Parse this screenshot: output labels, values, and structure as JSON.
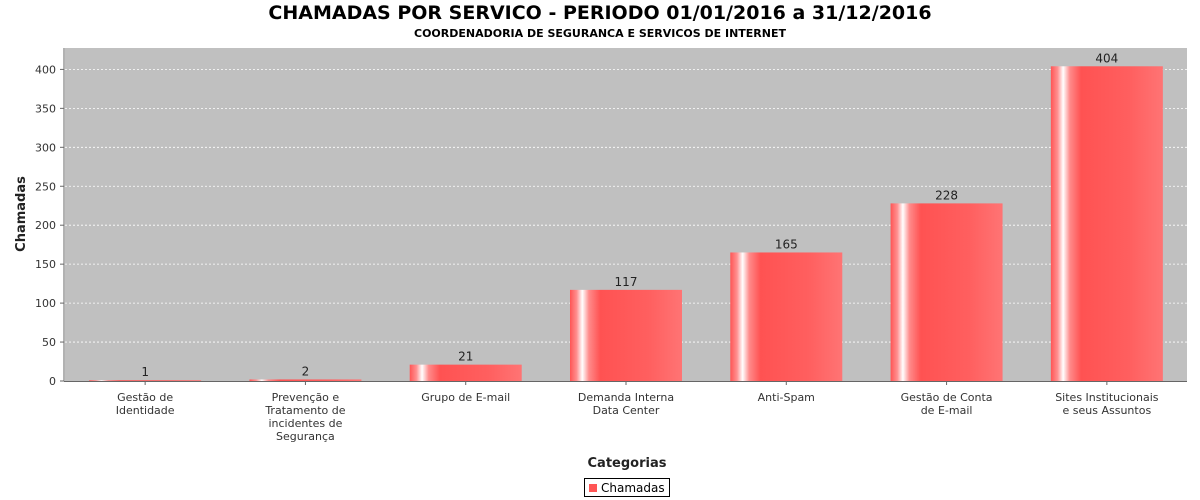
{
  "chart_data": {
    "type": "bar",
    "title": "CHAMADAS POR SERVICO - PERIODO 01/01/2016 a 31/12/2016",
    "subtitle": "COORDENADORIA DE SEGURANCA E SERVICOS DE INTERNET",
    "xlabel": "Categorias",
    "ylabel": "Chamadas",
    "ylim": [
      0,
      440
    ],
    "yticks": [
      0,
      50,
      100,
      150,
      200,
      250,
      300,
      350,
      400
    ],
    "grid": true,
    "legend_position": "bottom",
    "categories": [
      [
        "Gestão de",
        "Identidade"
      ],
      [
        "Prevenção e",
        "Tratamento de",
        "incidentes de",
        "Segurança"
      ],
      [
        "Grupo de E-mail"
      ],
      [
        "Demanda Interna",
        "Data Center"
      ],
      [
        "Anti-Spam"
      ],
      [
        "Gestão de Conta",
        "de E-mail"
      ],
      [
        "Sites Institucionais",
        "e seus Assuntos"
      ]
    ],
    "series": [
      {
        "name": "Chamadas",
        "values": [
          1,
          2,
          21,
          117,
          165,
          228,
          404
        ],
        "color": "#ff5555"
      }
    ],
    "colors": {
      "plot_background": "#c0c0c0",
      "bar": "#ff5555",
      "grid": "#ffffff"
    }
  }
}
